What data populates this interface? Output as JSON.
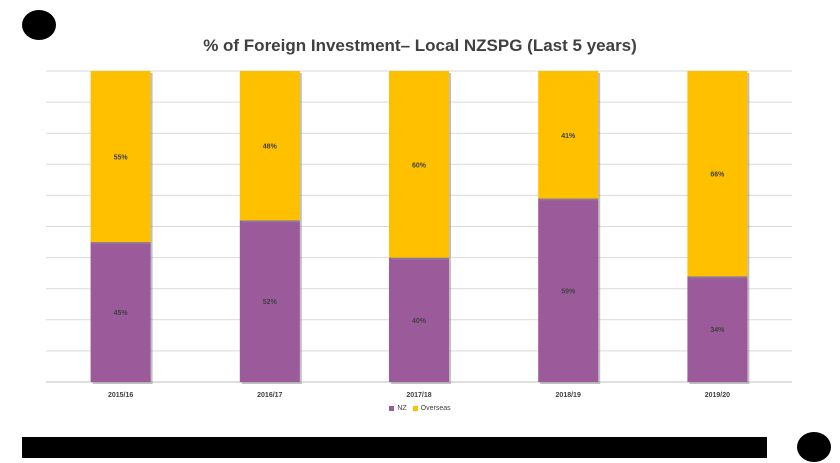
{
  "chart_data": {
    "type": "bar",
    "stacked": true,
    "title": "% of Foreign Investment– Local NZSPG (Last 5 years)",
    "categories": [
      "2015/16",
      "2016/17",
      "2017/18",
      "2018/19",
      "2019/20"
    ],
    "series": [
      {
        "name": "NZ",
        "values": [
          45,
          52,
          40,
          59,
          34
        ],
        "labels": [
          "45%",
          "52%",
          "40%",
          "59%",
          "34%"
        ],
        "color": "#9b5b9b"
      },
      {
        "name": "Overseas",
        "values": [
          55,
          48,
          60,
          41,
          66
        ],
        "labels": [
          "55%",
          "48%",
          "60%",
          "41%",
          "66%"
        ],
        "color": "#ffc000"
      }
    ],
    "ylim": [
      0,
      100
    ],
    "grid": true,
    "legend_position": "bottom"
  }
}
